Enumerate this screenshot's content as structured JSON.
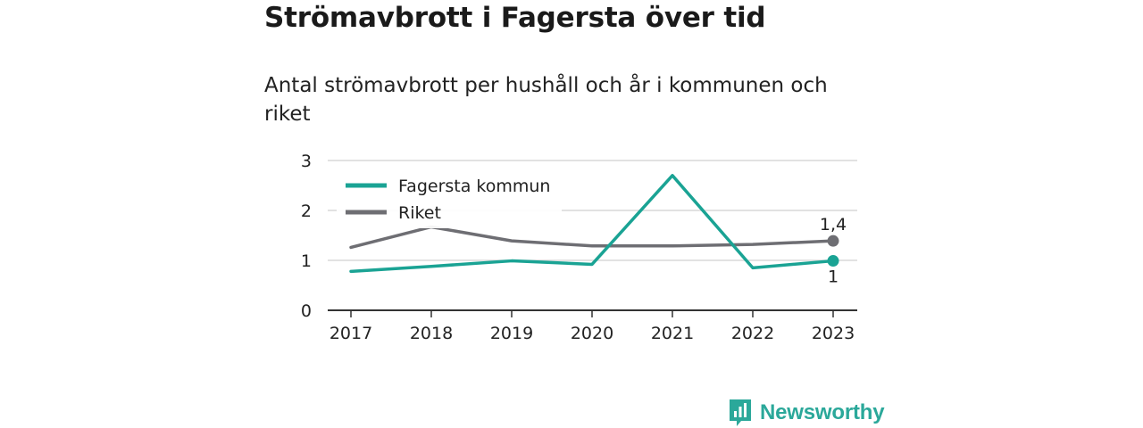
{
  "title": "Strömavbrott i Fagersta över tid",
  "subtitle": "Antal strömavbrott per hushåll och år i kommunen och riket",
  "brand": "Newsworthy",
  "chart_data": {
    "type": "line",
    "x": [
      "2017",
      "2018",
      "2019",
      "2020",
      "2021",
      "2022",
      "2023"
    ],
    "ylim": [
      0,
      3
    ],
    "yticks": [
      "0",
      "1",
      "2",
      "3"
    ],
    "grid": true,
    "legend_position": "top-left",
    "series": [
      {
        "name": "Fagersta kommun",
        "color": "#1aa394",
        "values": [
          0.78,
          0.88,
          0.99,
          0.92,
          2.7,
          0.85,
          0.99
        ],
        "end_label": "1"
      },
      {
        "name": "Riket",
        "color": "#6e6e73",
        "values": [
          1.26,
          1.67,
          1.39,
          1.29,
          1.29,
          1.32,
          1.39
        ],
        "end_label": "1,4"
      }
    ]
  }
}
